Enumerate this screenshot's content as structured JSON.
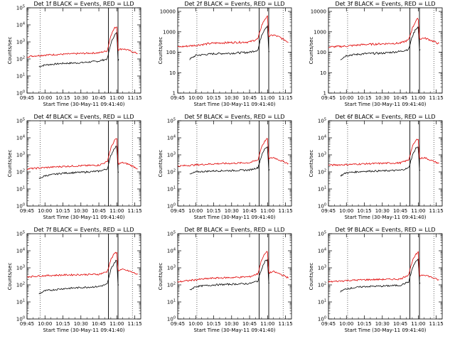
{
  "page": {
    "background": "#ffffff"
  },
  "colors": {
    "events": "#000000",
    "lld": "#e00000",
    "axis": "#000000"
  },
  "chart_data": [
    {
      "type": "line",
      "title": "Det 1f BLACK = Events, RED = LLD",
      "xlabel": "Start Time (30-May-11 09:41:40)",
      "ylabel": "Counts/sec",
      "xlim": [
        "09:45",
        "11:20"
      ],
      "x_ticks": [
        "09:45",
        "10:00",
        "10:15",
        "10:30",
        "10:45",
        "11:00",
        "11:15"
      ],
      "ylim": [
        1,
        100000
      ],
      "yscale": "log",
      "y_ticks": [
        "10^0",
        "10^1",
        "10^2",
        "10^3",
        "10^4",
        "10^5"
      ],
      "vlines_dotted": [
        "09:56",
        "11:13"
      ],
      "vlines_solid": [
        "10:53",
        "11:01"
      ],
      "series": [
        {
          "name": "Events",
          "color": "#000000",
          "x": [
            "09:55",
            "10:00",
            "10:15",
            "10:30",
            "10:45",
            "10:52",
            "10:55",
            "10:58",
            "11:00",
            "11:01",
            "11:02"
          ],
          "y": [
            35,
            45,
            55,
            60,
            75,
            100,
            800,
            2500,
            3500,
            80,
            100
          ]
        },
        {
          "name": "LLD",
          "color": "#e00000",
          "x": [
            "09:45",
            "10:00",
            "10:15",
            "10:30",
            "10:45",
            "10:52",
            "10:55",
            "10:58",
            "11:00",
            "11:01",
            "11:05",
            "11:10",
            "11:18"
          ],
          "y": [
            140,
            170,
            190,
            210,
            230,
            300,
            2500,
            6500,
            8000,
            350,
            400,
            320,
            200
          ]
        }
      ]
    },
    {
      "type": "line",
      "title": "Det 2f BLACK = Events, RED = LLD",
      "xlabel": "Start Time (30-May-11 09:41:40)",
      "ylabel": "Counts/sec",
      "xlim": [
        "09:45",
        "11:20"
      ],
      "x_ticks": [
        "09:45",
        "10:00",
        "10:15",
        "10:30",
        "10:45",
        "11:00",
        "11:15"
      ],
      "ylim": [
        1,
        15000
      ],
      "yscale": "log",
      "y_ticks": [
        "1",
        "10",
        "100",
        "1000",
        "10000"
      ],
      "vlines_dotted": [
        "10:01",
        "11:13"
      ],
      "vlines_solid": [
        "10:53",
        "11:01"
      ],
      "series": [
        {
          "name": "Events",
          "color": "#000000",
          "x": [
            "09:55",
            "10:00",
            "10:15",
            "10:30",
            "10:45",
            "10:52",
            "10:55",
            "10:58",
            "11:00",
            "11:01",
            "11:02"
          ],
          "y": [
            45,
            70,
            85,
            90,
            100,
            130,
            700,
            1500,
            2000,
            100,
            110
          ]
        },
        {
          "name": "LLD",
          "color": "#e00000",
          "x": [
            "09:45",
            "10:00",
            "10:15",
            "10:30",
            "10:45",
            "10:52",
            "10:55",
            "10:58",
            "11:00",
            "11:01",
            "11:05",
            "11:10",
            "11:18"
          ],
          "y": [
            180,
            220,
            280,
            300,
            320,
            450,
            2000,
            4500,
            5500,
            600,
            700,
            550,
            300
          ]
        }
      ]
    },
    {
      "type": "line",
      "title": "Det 3f BLACK = Events, RED = LLD",
      "xlabel": "Start Time (30-May-11 09:41:40)",
      "ylabel": "Counts/sec",
      "xlim": [
        "09:45",
        "11:20"
      ],
      "x_ticks": [
        "09:45",
        "10:00",
        "10:15",
        "10:30",
        "10:45",
        "11:00",
        "11:15"
      ],
      "ylim": [
        1,
        15000
      ],
      "yscale": "log",
      "y_ticks": [
        "1",
        "10",
        "100",
        "1000",
        "10000"
      ],
      "vlines_dotted": [
        "10:01",
        "11:13"
      ],
      "vlines_solid": [
        "10:53",
        "11:01"
      ],
      "series": [
        {
          "name": "Events",
          "color": "#000000",
          "x": [
            "09:55",
            "10:00",
            "10:15",
            "10:30",
            "10:45",
            "10:52",
            "10:55",
            "10:58",
            "11:00",
            "11:01",
            "11:02"
          ],
          "y": [
            45,
            70,
            85,
            90,
            110,
            140,
            600,
            1400,
            1800,
            120,
            130
          ]
        },
        {
          "name": "LLD",
          "color": "#e00000",
          "x": [
            "09:45",
            "10:00",
            "10:15",
            "10:30",
            "10:45",
            "10:52",
            "10:55",
            "10:58",
            "11:00",
            "11:01",
            "11:05",
            "11:10",
            "11:18"
          ],
          "y": [
            180,
            200,
            240,
            260,
            280,
            400,
            1500,
            3500,
            4500,
            450,
            500,
            400,
            250
          ]
        }
      ]
    },
    {
      "type": "line",
      "title": "Det 4f BLACK = Events, RED = LLD",
      "xlabel": "Start Time (30-May-11 09:41:40)",
      "ylabel": "Counts/sec",
      "xlim": [
        "09:45",
        "11:20"
      ],
      "x_ticks": [
        "09:45",
        "10:00",
        "10:15",
        "10:30",
        "10:45",
        "11:00",
        "11:15"
      ],
      "ylim": [
        1,
        100000
      ],
      "yscale": "log",
      "y_ticks": [
        "10^0",
        "10^1",
        "10^2",
        "10^3",
        "10^4",
        "10^5"
      ],
      "vlines_dotted": [
        "09:56",
        "11:13"
      ],
      "vlines_solid": [
        "10:53",
        "11:01"
      ],
      "series": [
        {
          "name": "Events",
          "color": "#000000",
          "x": [
            "09:55",
            "10:00",
            "10:15",
            "10:30",
            "10:45",
            "10:52",
            "10:55",
            "10:58",
            "11:00",
            "11:01",
            "11:02"
          ],
          "y": [
            40,
            60,
            85,
            95,
            110,
            150,
            900,
            2500,
            3500,
            100,
            110
          ]
        },
        {
          "name": "LLD",
          "color": "#e00000",
          "x": [
            "09:45",
            "10:00",
            "10:15",
            "10:30",
            "10:45",
            "10:52",
            "10:55",
            "10:58",
            "11:00",
            "11:01",
            "11:05",
            "11:10",
            "11:18"
          ],
          "y": [
            150,
            180,
            210,
            230,
            250,
            400,
            2500,
            7000,
            9000,
            300,
            350,
            280,
            150
          ]
        }
      ]
    },
    {
      "type": "line",
      "title": "Det 5f BLACK = Events, RED = LLD",
      "xlabel": "Start Time (30-May-11 09:41:40)",
      "ylabel": "Counts/sec",
      "xlim": [
        "09:45",
        "11:20"
      ],
      "x_ticks": [
        "09:45",
        "10:00",
        "10:15",
        "10:30",
        "10:45",
        "11:00",
        "11:15"
      ],
      "ylim": [
        1,
        100000
      ],
      "yscale": "log",
      "y_ticks": [
        "10^0",
        "10^1",
        "10^2",
        "10^3",
        "10^4",
        "10^5"
      ],
      "vlines_dotted": [
        "10:01",
        "11:13"
      ],
      "vlines_solid": [
        "10:53",
        "11:01"
      ],
      "series": [
        {
          "name": "Events",
          "color": "#000000",
          "x": [
            "09:55",
            "10:00",
            "10:15",
            "10:30",
            "10:45",
            "10:52",
            "10:55",
            "10:58",
            "11:00",
            "11:01",
            "11:02"
          ],
          "y": [
            70,
            100,
            115,
            120,
            130,
            180,
            900,
            2500,
            3000,
            130,
            140
          ]
        },
        {
          "name": "LLD",
          "color": "#e00000",
          "x": [
            "09:45",
            "10:00",
            "10:15",
            "10:30",
            "10:45",
            "10:52",
            "10:55",
            "10:58",
            "11:00",
            "11:01",
            "11:05",
            "11:10",
            "11:18"
          ],
          "y": [
            220,
            260,
            300,
            320,
            350,
            500,
            3000,
            7000,
            9000,
            600,
            700,
            500,
            300
          ]
        }
      ]
    },
    {
      "type": "line",
      "title": "Det 6f BLACK = Events, RED = LLD",
      "xlabel": "Start Time (30-May-11 09:41:40)",
      "ylabel": "Counts/sec",
      "xlim": [
        "09:45",
        "11:20"
      ],
      "x_ticks": [
        "09:45",
        "10:00",
        "10:15",
        "10:30",
        "10:45",
        "11:00",
        "11:15"
      ],
      "ylim": [
        1,
        100000
      ],
      "yscale": "log",
      "y_ticks": [
        "10^0",
        "10^1",
        "10^2",
        "10^3",
        "10^4",
        "10^5"
      ],
      "vlines_dotted": [
        "10:01",
        "11:13"
      ],
      "vlines_solid": [
        "10:53",
        "11:01"
      ],
      "series": [
        {
          "name": "Events",
          "color": "#000000",
          "x": [
            "09:55",
            "10:00",
            "10:15",
            "10:30",
            "10:45",
            "10:52",
            "10:55",
            "10:58",
            "11:00",
            "11:01",
            "11:02"
          ],
          "y": [
            60,
            90,
            110,
            115,
            125,
            170,
            900,
            2500,
            3000,
            130,
            140
          ]
        },
        {
          "name": "LLD",
          "color": "#e00000",
          "x": [
            "09:45",
            "10:00",
            "10:15",
            "10:30",
            "10:45",
            "10:52",
            "10:55",
            "10:58",
            "11:00",
            "11:01",
            "11:05",
            "11:10",
            "11:18"
          ],
          "y": [
            250,
            270,
            300,
            320,
            340,
            500,
            3000,
            7000,
            9000,
            600,
            700,
            500,
            300
          ]
        }
      ]
    },
    {
      "type": "line",
      "title": "Det 7f BLACK = Events, RED = LLD",
      "xlabel": "Start Time (30-May-11 09:41:40)",
      "ylabel": "Counts/sec",
      "xlim": [
        "09:45",
        "11:20"
      ],
      "x_ticks": [
        "09:45",
        "10:00",
        "10:15",
        "10:30",
        "10:45",
        "11:00",
        "11:15"
      ],
      "ylim": [
        1,
        100000
      ],
      "yscale": "log",
      "y_ticks": [
        "10^0",
        "10^1",
        "10^2",
        "10^3",
        "10^4",
        "10^5"
      ],
      "vlines_dotted": [
        "09:56",
        "11:13"
      ],
      "vlines_solid": [
        "10:53",
        "11:01"
      ],
      "series": [
        {
          "name": "Events",
          "color": "#000000",
          "x": [
            "09:55",
            "10:00",
            "10:15",
            "10:30",
            "10:45",
            "10:52",
            "10:55",
            "10:58",
            "11:00",
            "11:01",
            "11:02"
          ],
          "y": [
            30,
            45,
            60,
            70,
            80,
            110,
            800,
            2000,
            3000,
            90,
            100
          ]
        },
        {
          "name": "LLD",
          "color": "#e00000",
          "x": [
            "09:45",
            "10:00",
            "10:15",
            "10:30",
            "10:45",
            "10:52",
            "10:55",
            "10:58",
            "11:00",
            "11:01",
            "11:05",
            "11:10",
            "11:18"
          ],
          "y": [
            300,
            350,
            380,
            400,
            420,
            600,
            3000,
            7000,
            8500,
            700,
            800,
            650,
            400
          ]
        }
      ]
    },
    {
      "type": "line",
      "title": "Det 8f BLACK = Events, RED = LLD",
      "xlabel": "Start Time (30-May-11 09:41:40)",
      "ylabel": "Counts/sec",
      "xlim": [
        "09:45",
        "11:20"
      ],
      "x_ticks": [
        "09:45",
        "10:00",
        "10:15",
        "10:30",
        "10:45",
        "11:00",
        "11:15"
      ],
      "ylim": [
        1,
        100000
      ],
      "yscale": "log",
      "y_ticks": [
        "10^0",
        "10^1",
        "10^2",
        "10^3",
        "10^4",
        "10^5"
      ],
      "vlines_dotted": [
        "10:01",
        "11:13"
      ],
      "vlines_solid": [
        "10:53",
        "11:01"
      ],
      "series": [
        {
          "name": "Events",
          "color": "#000000",
          "x": [
            "09:55",
            "10:00",
            "10:15",
            "10:30",
            "10:45",
            "10:52",
            "10:55",
            "10:58",
            "11:00",
            "11:01",
            "11:02"
          ],
          "y": [
            50,
            80,
            100,
            110,
            120,
            170,
            900,
            2500,
            3000,
            120,
            130
          ]
        },
        {
          "name": "LLD",
          "color": "#e00000",
          "x": [
            "09:45",
            "10:00",
            "10:15",
            "10:30",
            "10:45",
            "10:52",
            "10:55",
            "10:58",
            "11:00",
            "11:01",
            "11:05",
            "11:10",
            "11:18"
          ],
          "y": [
            150,
            200,
            250,
            270,
            300,
            450,
            3000,
            7000,
            9000,
            500,
            600,
            450,
            250
          ]
        }
      ]
    },
    {
      "type": "line",
      "title": "Det 9f BLACK = Events, RED = LLD",
      "xlabel": "Start Time (30-May-11 09:41:40)",
      "ylabel": "Counts/sec",
      "xlim": [
        "09:45",
        "11:20"
      ],
      "x_ticks": [
        "09:45",
        "10:00",
        "10:15",
        "10:30",
        "10:45",
        "11:00",
        "11:15"
      ],
      "ylim": [
        1,
        100000
      ],
      "yscale": "log",
      "y_ticks": [
        "10^0",
        "10^1",
        "10^2",
        "10^3",
        "10^4",
        "10^5"
      ],
      "vlines_dotted": [
        "10:01",
        "11:13"
      ],
      "vlines_solid": [
        "10:53",
        "11:01"
      ],
      "series": [
        {
          "name": "Events",
          "color": "#000000",
          "x": [
            "09:55",
            "10:00",
            "10:15",
            "10:30",
            "10:45",
            "10:52",
            "10:55",
            "10:58",
            "11:00",
            "11:01",
            "11:02"
          ],
          "y": [
            40,
            60,
            80,
            85,
            95,
            150,
            900,
            2500,
            3000,
            120,
            130
          ]
        },
        {
          "name": "LLD",
          "color": "#e00000",
          "x": [
            "09:45",
            "10:00",
            "10:15",
            "10:30",
            "10:45",
            "10:52",
            "10:55",
            "10:58",
            "11:00",
            "11:01",
            "11:05",
            "11:10",
            "11:18"
          ],
          "y": [
            150,
            180,
            200,
            210,
            220,
            400,
            2500,
            6000,
            8000,
            350,
            400,
            300,
            180
          ]
        }
      ]
    }
  ]
}
